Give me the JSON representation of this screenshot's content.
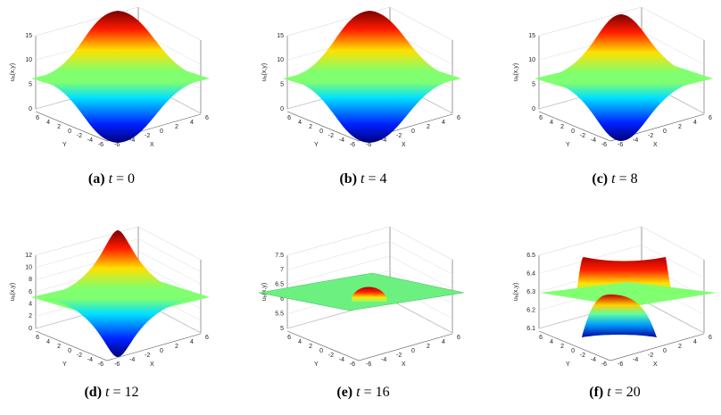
{
  "panels": [
    {
      "label": "(a)",
      "var": "t",
      "caption": "= 0",
      "zlabel": "u",
      "zlabel_sub": "h",
      "zlabel_args": "(x,y)",
      "zticks": [
        0,
        5,
        10,
        15
      ],
      "xlabel": "X",
      "ylabel": "Y",
      "xticks": [
        -6,
        -4,
        -2,
        0,
        2,
        4,
        6
      ],
      "yticks": [
        6,
        4,
        2,
        0,
        -2,
        -4,
        -6
      ]
    },
    {
      "label": "(b)",
      "var": "t",
      "caption": "= 4",
      "zlabel": "u",
      "zlabel_sub": "h",
      "zlabel_args": "(x,y)",
      "zticks": [
        0,
        5,
        10,
        15
      ],
      "xlabel": "X",
      "ylabel": "Y",
      "xticks": [
        -6,
        -4,
        -2,
        0,
        2,
        4,
        6
      ],
      "yticks": [
        6,
        4,
        2,
        0,
        -2,
        -4,
        -6
      ]
    },
    {
      "label": "(c)",
      "var": "t",
      "caption": "= 8",
      "zlabel": "u",
      "zlabel_sub": "h",
      "zlabel_args": "(x,y)",
      "zticks": [
        0,
        5,
        10,
        15
      ],
      "xlabel": "X",
      "ylabel": "Y",
      "xticks": [
        -6,
        -4,
        -2,
        0,
        2,
        4,
        6
      ],
      "yticks": [
        6,
        4,
        2,
        0,
        -2,
        -4,
        -6
      ]
    },
    {
      "label": "(d)",
      "var": "t",
      "caption": "= 12",
      "zlabel": "u",
      "zlabel_sub": "h",
      "zlabel_args": "(x,y)",
      "zticks": [
        0,
        2,
        4,
        6,
        8,
        10,
        12
      ],
      "xlabel": "X",
      "ylabel": "Y",
      "xticks": [
        -6,
        -4,
        -2,
        0,
        2,
        4,
        6
      ],
      "yticks": [
        6,
        4,
        2,
        0,
        -2,
        -4,
        -6
      ]
    },
    {
      "label": "(e)",
      "var": "t",
      "caption": "= 16",
      "zlabel": "u",
      "zlabel_sub": "h",
      "zlabel_args": "(x,y)",
      "zticks": [
        5,
        5.5,
        6,
        6.5,
        7,
        7.5
      ],
      "xlabel": "X",
      "ylabel": "Y",
      "xticks": [
        -6,
        -4,
        -2,
        0,
        2,
        4,
        6
      ],
      "yticks": [
        6,
        4,
        2,
        0,
        -2,
        -4,
        -6
      ]
    },
    {
      "label": "(f)",
      "var": "t",
      "caption": "= 20",
      "zlabel": "u",
      "zlabel_sub": "h",
      "zlabel_args": "(x,y)",
      "zticks": [
        6.1,
        6.2,
        6.3,
        6.4,
        6.5
      ],
      "xlabel": "X",
      "ylabel": "Y",
      "xticks": [
        -6,
        -4,
        -2,
        0,
        2,
        4,
        6
      ],
      "yticks": [
        6,
        4,
        2,
        0,
        -2,
        -4,
        -6
      ]
    }
  ]
}
